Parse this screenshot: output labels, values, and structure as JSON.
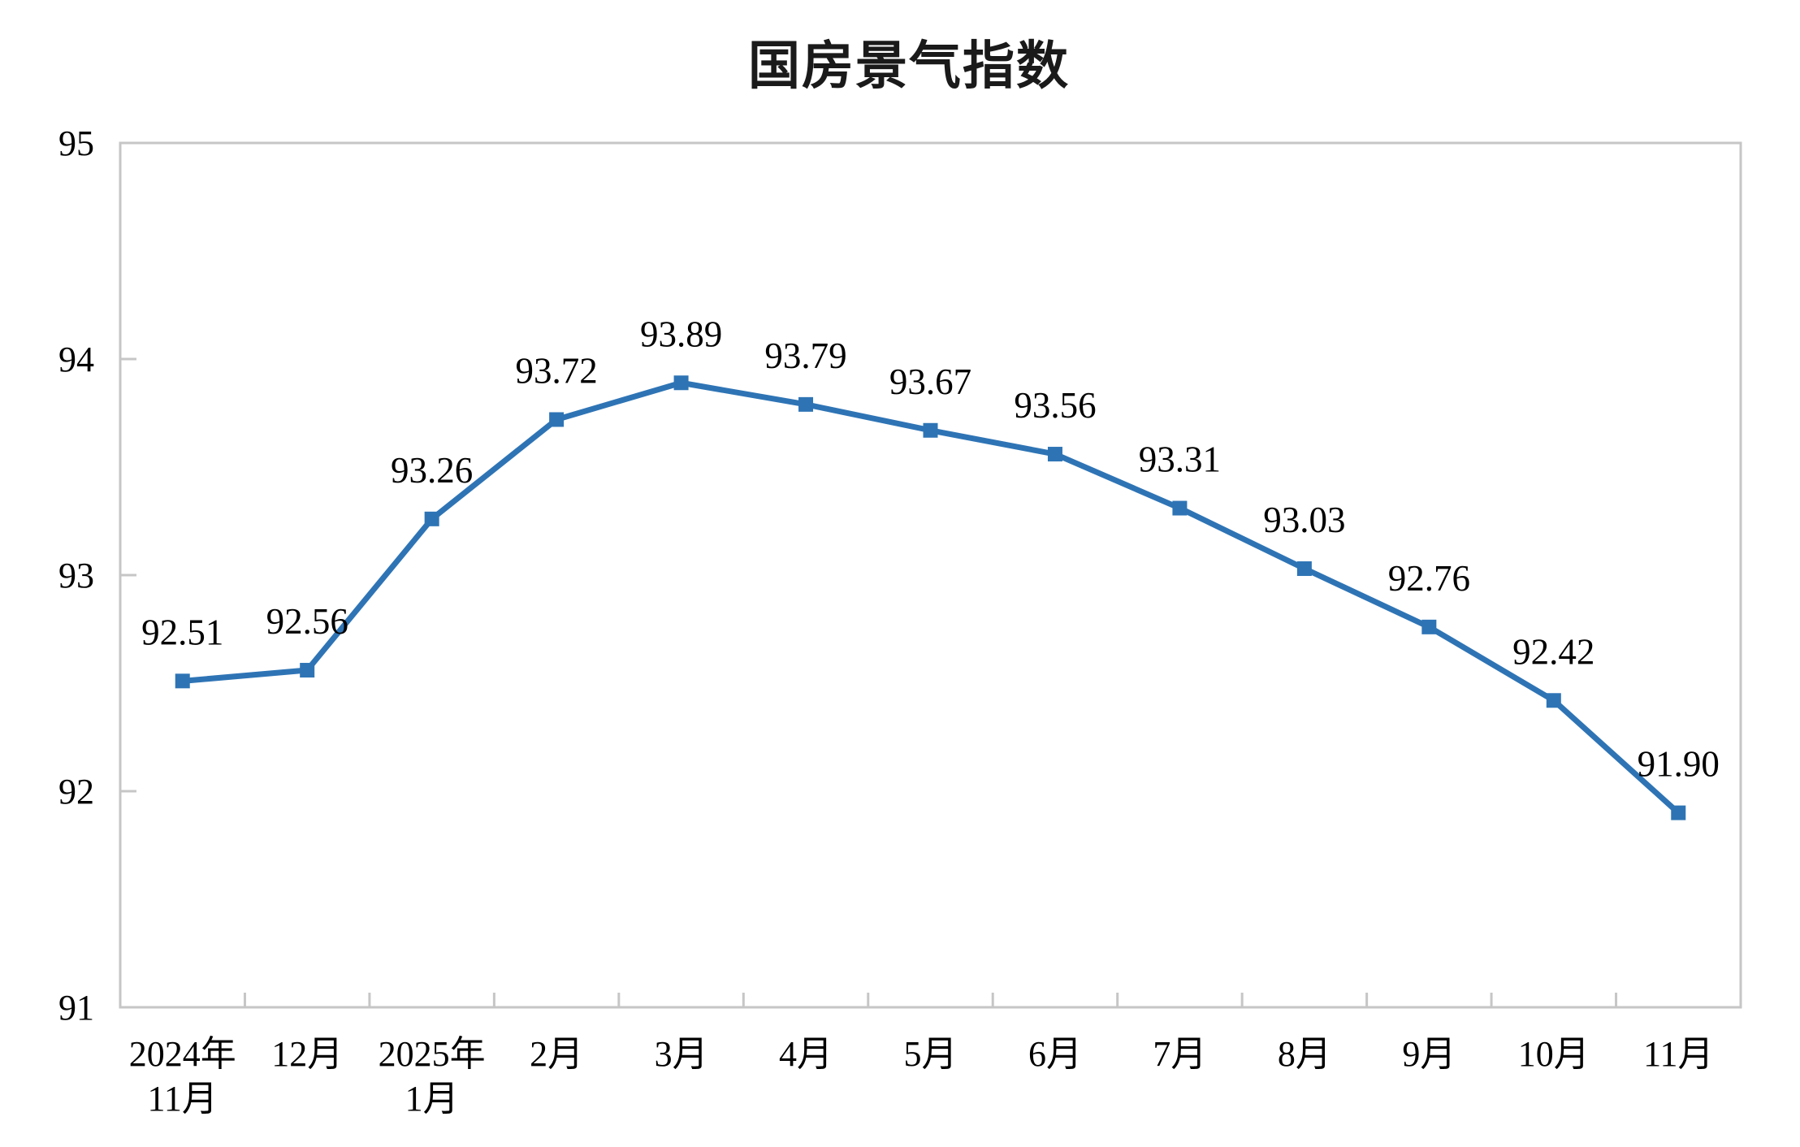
{
  "chart_data": {
    "type": "line",
    "title": "国房景气指数",
    "categories": [
      [
        "2024年",
        "11月"
      ],
      [
        "12月"
      ],
      [
        "2025年",
        "1月"
      ],
      [
        "2月"
      ],
      [
        "3月"
      ],
      [
        "4月"
      ],
      [
        "5月"
      ],
      [
        "6月"
      ],
      [
        "7月"
      ],
      [
        "8月"
      ],
      [
        "9月"
      ],
      [
        "10月"
      ],
      [
        "11月"
      ]
    ],
    "series": [
      {
        "name": "国房景气指数",
        "values": [
          92.51,
          92.56,
          93.26,
          93.72,
          93.89,
          93.79,
          93.67,
          93.56,
          93.31,
          93.03,
          92.76,
          92.42,
          91.9
        ],
        "data_labels": [
          "92.51",
          "92.56",
          "93.26",
          "93.72",
          "93.89",
          "93.79",
          "93.67",
          "93.56",
          "93.31",
          "93.03",
          "92.76",
          "92.42",
          "91.90"
        ]
      }
    ],
    "xlabel": "",
    "ylabel": "",
    "ylim": [
      91,
      95
    ],
    "yticks": [
      91,
      92,
      93,
      94,
      95
    ],
    "grid": "off",
    "legend": "none",
    "marker": "square",
    "label_position": "above",
    "colors": {
      "line": "#2E74B5",
      "marker": "#2E74B5",
      "axis": "#C6C6C6",
      "text": "#000000"
    }
  }
}
